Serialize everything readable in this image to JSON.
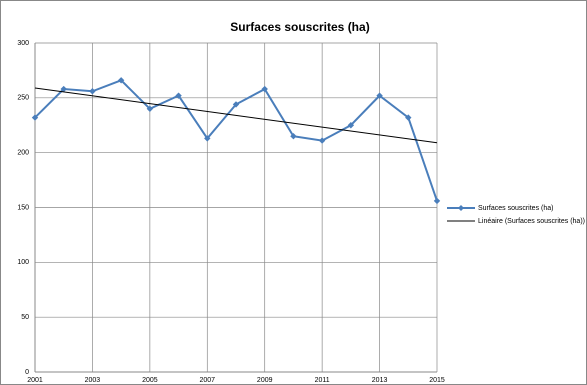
{
  "chart_data": {
    "type": "line",
    "title": "Surfaces souscrites (ha)",
    "x": [
      2001,
      2002,
      2003,
      2004,
      2005,
      2006,
      2007,
      2008,
      2009,
      2010,
      2011,
      2012,
      2013,
      2014,
      2015
    ],
    "series": [
      {
        "name": "Surfaces souscrites (ha)",
        "color": "#4a7ebb",
        "marker": "diamond",
        "values": [
          232,
          258,
          256,
          266,
          240,
          252,
          213,
          244,
          258,
          215,
          211,
          225,
          252,
          232,
          156
        ]
      },
      {
        "name": "Linéaire (Surfaces souscrites (ha))",
        "color": "#000000",
        "x": [
          2001,
          2015
        ],
        "values": [
          259,
          209
        ]
      }
    ],
    "xlim": [
      2001,
      2015
    ],
    "xticks": [
      2001,
      2003,
      2005,
      2007,
      2009,
      2011,
      2013,
      2015
    ],
    "ylim": [
      0,
      300
    ],
    "yticks": [
      0,
      50,
      100,
      150,
      200,
      250,
      300
    ],
    "grid": true,
    "legend": "right"
  }
}
